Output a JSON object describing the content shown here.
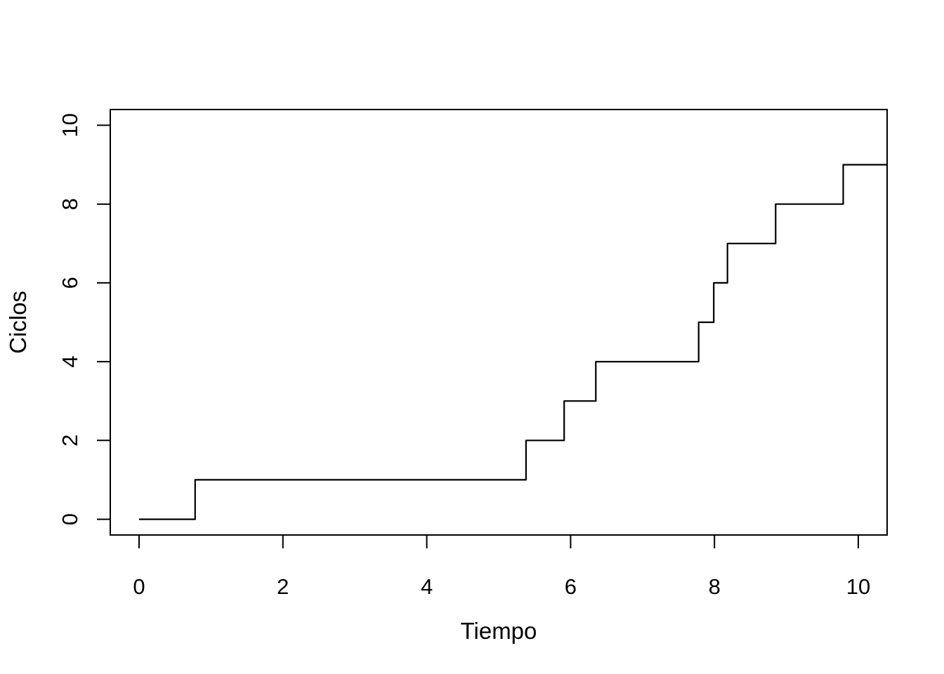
{
  "colors": {
    "background": "#ffffff",
    "line": "#000000",
    "text": "#000000"
  },
  "chart_data": {
    "type": "line",
    "subtype": "step",
    "title": "",
    "xlabel": "Tiempo",
    "ylabel": "Ciclos",
    "x_ticks": [
      0,
      2,
      4,
      6,
      8,
      10
    ],
    "y_ticks": [
      0,
      2,
      4,
      6,
      8,
      10
    ],
    "xlim": [
      -0.4,
      10.4
    ],
    "ylim": [
      -0.4,
      10.4
    ],
    "grid": false,
    "legend": false,
    "step_style": "horizontal-then-vertical",
    "series": [
      {
        "name": "Ciclos",
        "color": "#000000",
        "start": {
          "x": 0,
          "y": 0
        },
        "jumps": [
          {
            "x": 0.78,
            "to_y": 1
          },
          {
            "x": 5.38,
            "to_y": 2
          },
          {
            "x": 5.91,
            "to_y": 3
          },
          {
            "x": 6.35,
            "to_y": 4
          },
          {
            "x": 7.78,
            "to_y": 5
          },
          {
            "x": 7.99,
            "to_y": 6
          },
          {
            "x": 8.18,
            "to_y": 7
          },
          {
            "x": 8.85,
            "to_y": 8
          },
          {
            "x": 9.79,
            "to_y": 9
          }
        ],
        "end_x": 10.4
      }
    ]
  }
}
